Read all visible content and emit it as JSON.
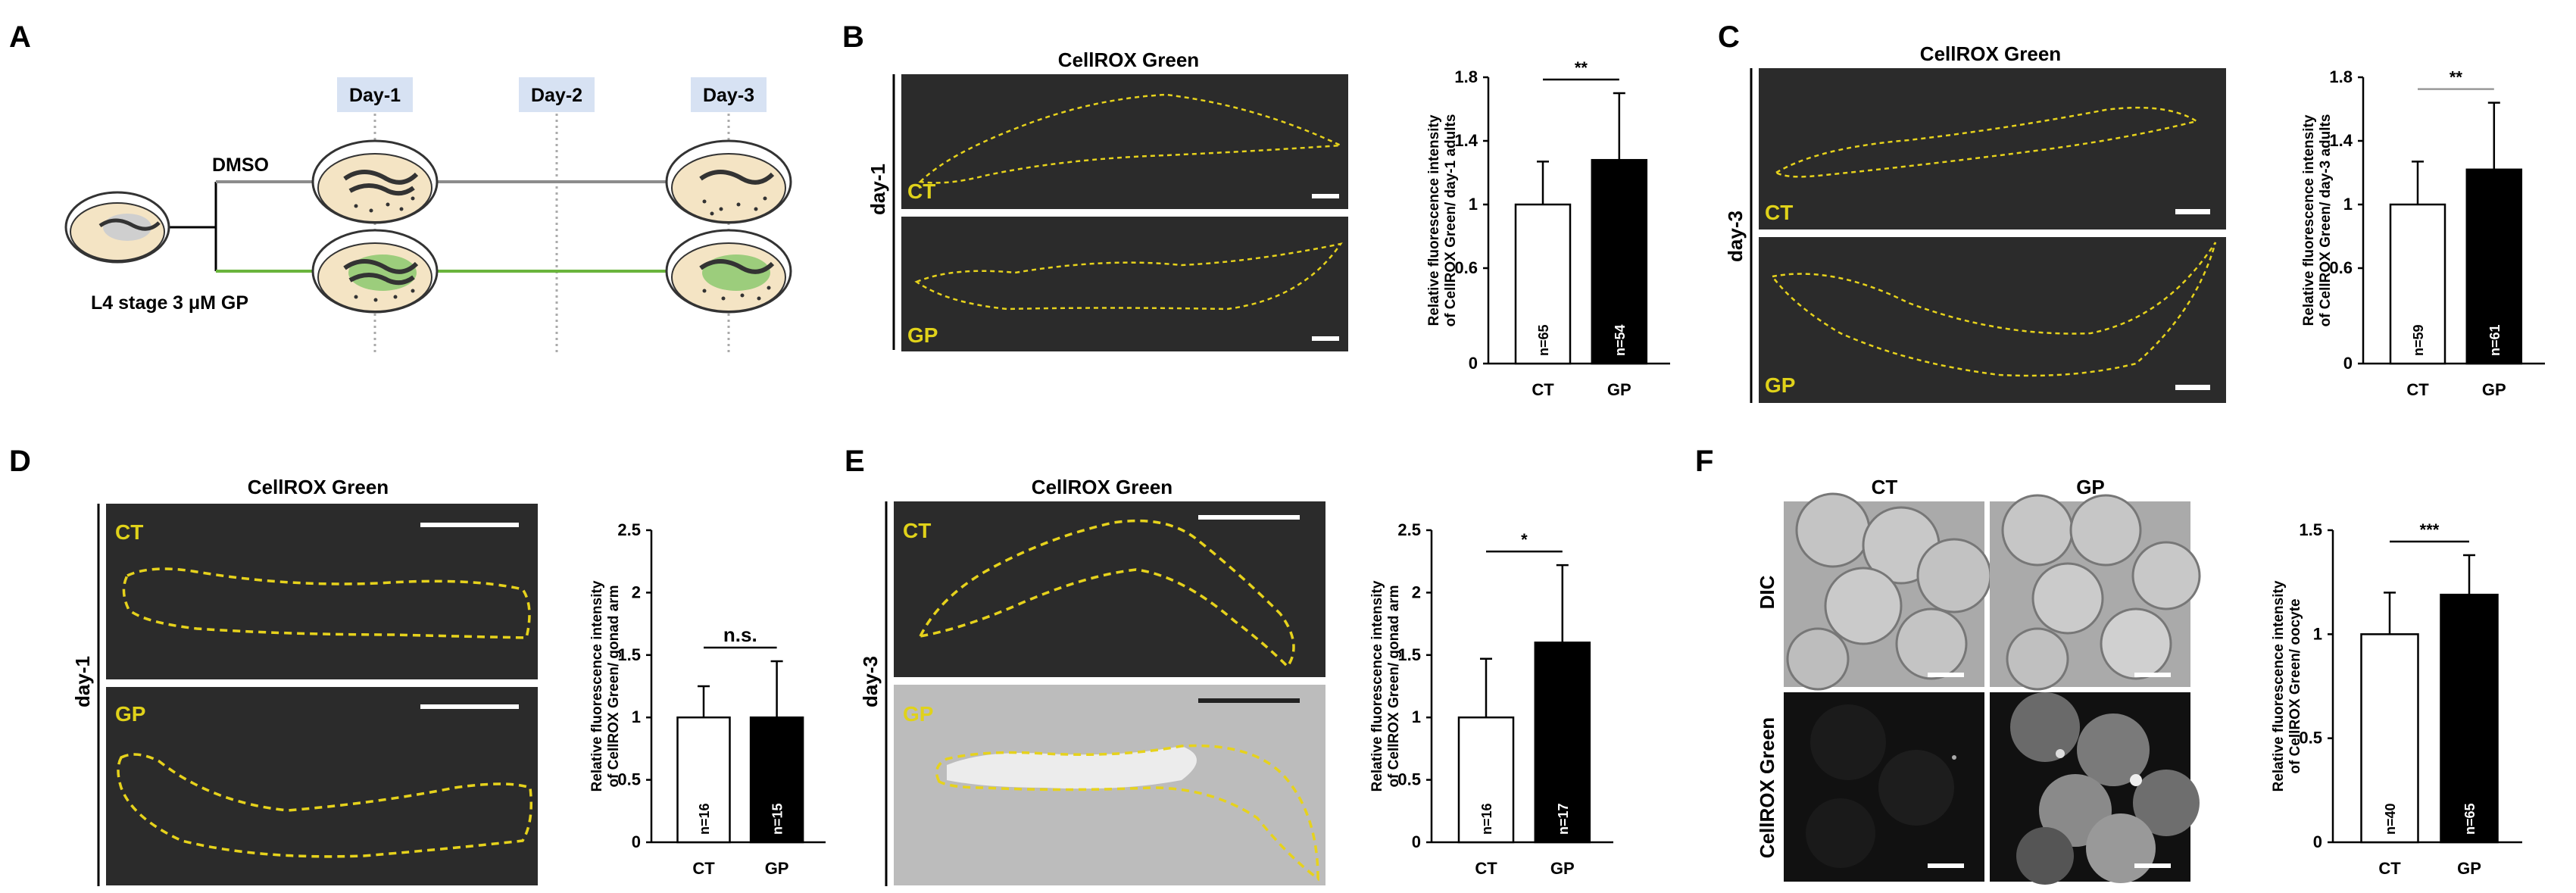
{
  "panels": {
    "A": {
      "label": "A",
      "days": [
        "Day-1",
        "Day-2",
        "Day-3"
      ],
      "dmso": "DMSO",
      "gp": "3 μM GP",
      "stage": "L4 stage",
      "colors": {
        "dmso_line": "#8c8c8c",
        "gp_line": "#6ab43c",
        "day_box": "#d7e2f3",
        "plate": "#f4e4c4",
        "gp_fill": "#9ccd7c"
      }
    },
    "B": {
      "label": "B",
      "title": "CellROX Green",
      "row_label": "day-1",
      "top": "CT",
      "bottom": "GP"
    },
    "C": {
      "label": "C",
      "title": "CellROX Green",
      "row_label": "day-3",
      "top": "CT",
      "bottom": "GP"
    },
    "D": {
      "label": "D",
      "title": "CellROX Green",
      "row_label": "day-1",
      "top": "CT",
      "bottom": "GP"
    },
    "E": {
      "label": "E",
      "title": "CellROX Green",
      "row_label": "day-3",
      "top": "CT",
      "bottom": "GP"
    },
    "F": {
      "label": "F",
      "col_ct": "CT",
      "col_gp": "GP",
      "row_dic": "DIC",
      "row_green": "CellROX Green"
    }
  },
  "chart_data": [
    {
      "id": "B",
      "type": "bar",
      "categories": [
        "CT",
        "GP"
      ],
      "values": [
        1.0,
        1.28
      ],
      "errors": [
        0.27,
        0.42
      ],
      "n_labels": [
        "n=65",
        "n=54"
      ],
      "ylim": [
        0,
        1.8
      ],
      "yticks": [
        "0",
        "0.6",
        "1",
        "1.4",
        "1.8"
      ],
      "ytick_values": [
        0,
        0.6,
        1.0,
        1.4,
        1.8
      ],
      "ylabel": [
        "Relative fluorescence intensity",
        "of CellROX Green/ day-1 adults"
      ],
      "significance": "**"
    },
    {
      "id": "C",
      "type": "bar",
      "categories": [
        "CT",
        "GP"
      ],
      "values": [
        1.0,
        1.22
      ],
      "errors": [
        0.27,
        0.42
      ],
      "n_labels": [
        "n=59",
        "n=61"
      ],
      "ylim": [
        0,
        1.8
      ],
      "yticks": [
        "0",
        "0.6",
        "1",
        "1.4",
        "1.8"
      ],
      "ytick_values": [
        0,
        0.6,
        1.0,
        1.4,
        1.8
      ],
      "ylabel": [
        "Relative fluorescence intensity",
        "of CellROX Green/ day-3 adults"
      ],
      "significance": "**"
    },
    {
      "id": "D",
      "type": "bar",
      "categories": [
        "CT",
        "GP"
      ],
      "values": [
        1.0,
        1.0
      ],
      "errors": [
        0.25,
        0.45
      ],
      "n_labels": [
        "n=16",
        "n=15"
      ],
      "ylim": [
        0,
        2.5
      ],
      "yticks": [
        "0",
        "0.5",
        "1",
        "1.5",
        "2",
        "2.5"
      ],
      "ytick_values": [
        0,
        0.5,
        1,
        1.5,
        2,
        2.5
      ],
      "ylabel": [
        "Relative fluorescence intensity",
        "of CellROX Green/ gonad arm"
      ],
      "significance": "n.s."
    },
    {
      "id": "E",
      "type": "bar",
      "categories": [
        "CT",
        "GP"
      ],
      "values": [
        1.0,
        1.6
      ],
      "errors": [
        0.47,
        0.62
      ],
      "n_labels": [
        "n=16",
        "n=17"
      ],
      "ylim": [
        0,
        2.5
      ],
      "yticks": [
        "0",
        "0.5",
        "1",
        "1.5",
        "2",
        "2.5"
      ],
      "ytick_values": [
        0,
        0.5,
        1,
        1.5,
        2,
        2.5
      ],
      "ylabel": [
        "Relative fluorescence intensity",
        "of CellROX Green/ gonad arm"
      ],
      "significance": "*"
    },
    {
      "id": "F",
      "type": "bar",
      "categories": [
        "CT",
        "GP"
      ],
      "values": [
        1.0,
        1.19
      ],
      "errors": [
        0.2,
        0.19
      ],
      "n_labels": [
        "n=40",
        "n=65"
      ],
      "ylim": [
        0,
        1.5
      ],
      "yticks": [
        "0",
        "0.5",
        "1",
        "1.5"
      ],
      "ytick_values": [
        0,
        0.5,
        1,
        1.5
      ],
      "ylabel": [
        "Relative fluorescence intensity",
        "of CellROX Green/ oocyte"
      ],
      "significance": "***"
    }
  ]
}
